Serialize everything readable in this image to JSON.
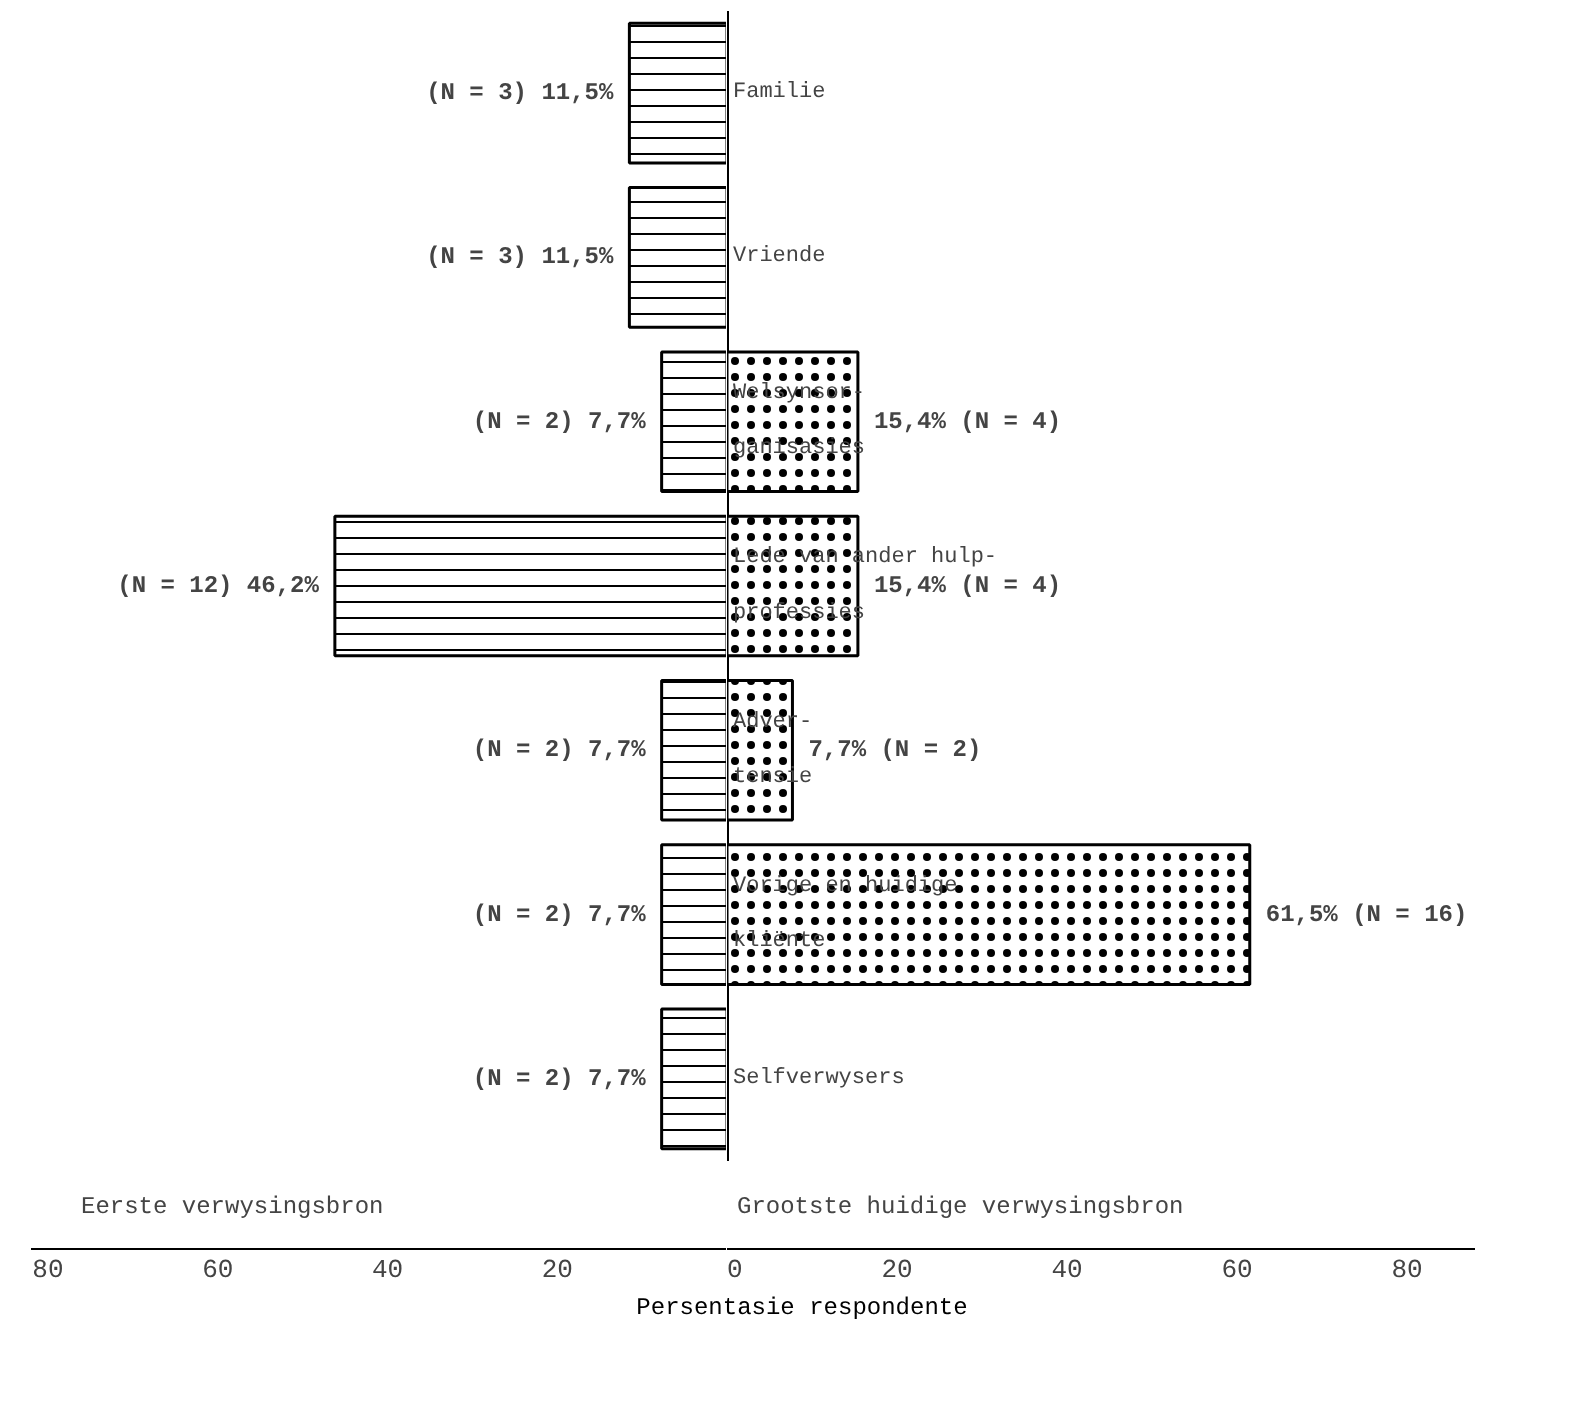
{
  "chart_data": [
    {
      "type": "bar",
      "orientation": "horizontal",
      "title": "Eerste verwysingsbron",
      "categories": [
        null,
        null,
        null,
        null,
        null,
        null,
        null
      ],
      "series": [
        {
          "color": "#000000",
          "values": [
            11.5,
            11.5,
            7.7,
            46.2,
            7.7,
            7.7,
            7.7
          ],
          "value_labels": [
            "(N = 3) 11,5%",
            "(N = 3) 11,5%",
            "(N = 2) 7,7%",
            "(N = 12) 46,2%",
            "(N = 2) 7,7%",
            "(N = 2) 7,7%",
            "(N = 2) 7,7%"
          ]
        }
      ],
      "xlim": [
        82,
        0
      ],
      "xticks": [
        80,
        60,
        40,
        20
      ],
      "grid": false
    },
    {
      "type": "bar",
      "orientation": "horizontal",
      "title": "Grootste huidige verwysingsbron",
      "xlabel": "Persentasie respondente",
      "categories": [
        "Familie",
        "Vriende",
        "Welsynsor-\nganisasies",
        "Lede van ander hulp-\nprofessies",
        "Adver-\ntensie",
        "Vorige en huidige\nkliënte",
        "Selfverwysers"
      ],
      "series": [
        {
          "color": "#000000",
          "values": [
            null,
            null,
            15.4,
            15.4,
            7.7,
            61.5,
            null
          ],
          "value_labels": [
            null,
            null,
            "15,4% (N = 4)",
            "15,4% (N = 4)",
            "7,7% (N = 2)",
            "61,5% (N = 16)",
            null
          ]
        }
      ],
      "xlim": [
        0,
        88
      ],
      "xticks": [
        0,
        20,
        40,
        60,
        80
      ],
      "grid": false
    }
  ]
}
